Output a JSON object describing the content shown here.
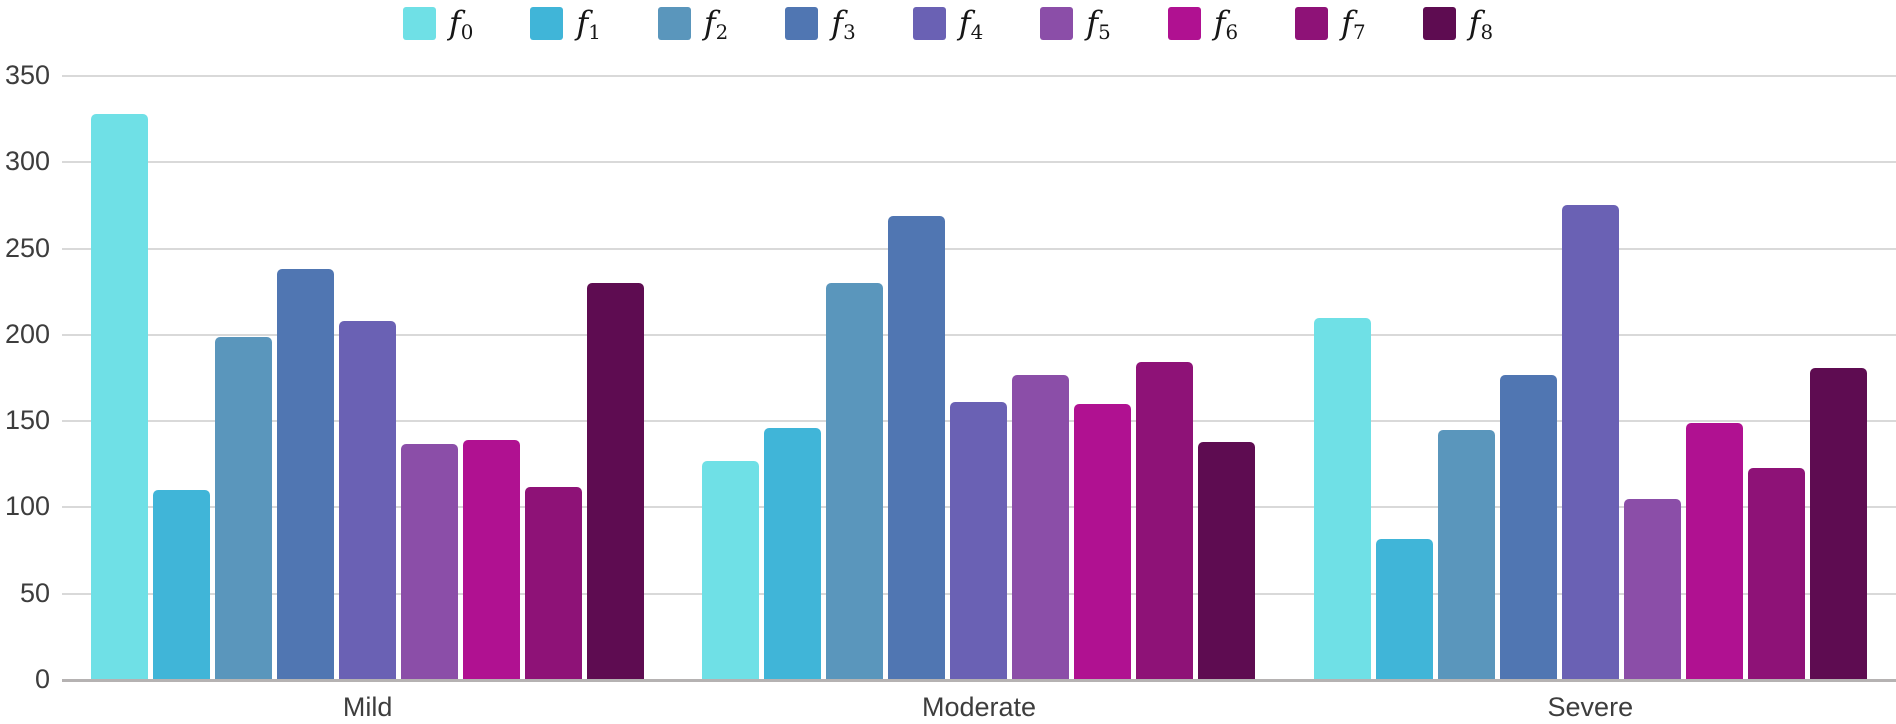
{
  "chart_data": {
    "type": "bar",
    "title": "",
    "xlabel": "",
    "ylabel": "",
    "categories": [
      "Mild",
      "Moderate",
      "Severe"
    ],
    "series": [
      {
        "name": "f0",
        "color": "#6FE0E6",
        "values": [
          328,
          127,
          210
        ]
      },
      {
        "name": "f1",
        "color": "#40B5D8",
        "values": [
          110,
          146,
          82
        ]
      },
      {
        "name": "f2",
        "color": "#5A96BC",
        "values": [
          199,
          230,
          145
        ]
      },
      {
        "name": "f3",
        "color": "#5076B2",
        "values": [
          238,
          269,
          177
        ]
      },
      {
        "name": "f4",
        "color": "#6A61B4",
        "values": [
          208,
          161,
          275
        ]
      },
      {
        "name": "f5",
        "color": "#8B4EA8",
        "values": [
          137,
          177,
          105
        ]
      },
      {
        "name": "f6",
        "color": "#B01191",
        "values": [
          139,
          160,
          149
        ]
      },
      {
        "name": "f7",
        "color": "#8E1277",
        "values": [
          112,
          184,
          123
        ]
      },
      {
        "name": "f8",
        "color": "#5E0C51",
        "values": [
          230,
          138,
          181
        ]
      }
    ],
    "ylim": [
      0,
      350
    ],
    "yticks": [
      0,
      50,
      100,
      150,
      200,
      250,
      300,
      350
    ],
    "grid": true,
    "legend_position": "top",
    "legend_label_prefix": "f"
  },
  "colors": {
    "background": "#ffffff",
    "gridline": "#d9d9d9",
    "baseline": "#b5b2b2",
    "axis_text": "#3d3d3d",
    "legend_text": "#171717"
  }
}
